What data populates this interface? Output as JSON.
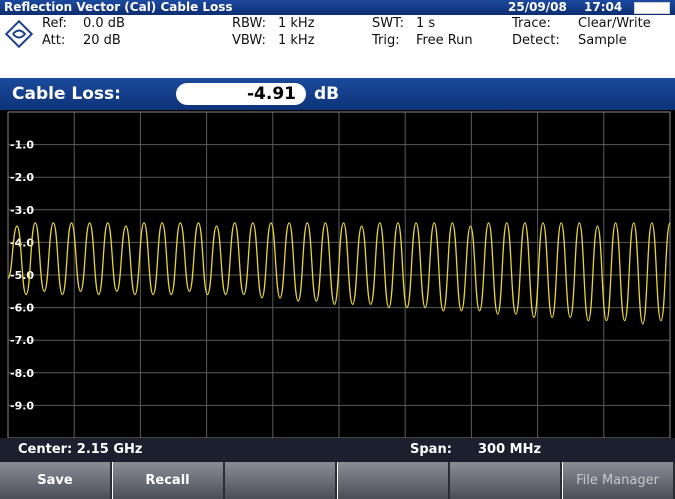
{
  "title_bar": {
    "title": "Reflection Vector (Cal) Cable Loss",
    "date": "25/09/08",
    "time": "17:04"
  },
  "header": {
    "ref": [
      "Ref:",
      "0.0 dB"
    ],
    "att": [
      "Att:",
      "20 dB"
    ],
    "rbw": [
      "RBW:",
      "1 kHz"
    ],
    "vbw": [
      "VBW:",
      "1 kHz"
    ],
    "swt": [
      "SWT:",
      "1 s"
    ],
    "trig": [
      "Trig:",
      "Free Run"
    ],
    "trace": [
      "Trace:",
      "Clear/Write"
    ],
    "detect": [
      "Detect:",
      "Sample"
    ]
  },
  "result": {
    "label": "Cable Loss:",
    "value": -4.91,
    "unit": "dB"
  },
  "chart_data": {
    "type": "line",
    "ylim": [
      -10,
      0
    ],
    "yticks": [
      {
        "value": -1,
        "label": "-1.0"
      },
      {
        "value": -2,
        "label": "-2.0"
      },
      {
        "value": -3,
        "label": "-3.0"
      },
      {
        "value": -4,
        "label": "-4.0"
      },
      {
        "value": -5,
        "label": "-5.0"
      },
      {
        "value": -6,
        "label": "-6.0"
      },
      {
        "value": -7,
        "label": "-7.0"
      },
      {
        "value": -8,
        "label": "-8.0"
      },
      {
        "value": -9,
        "label": "-9.0"
      }
    ],
    "grid": true,
    "series": [
      {
        "color": "#e6d43a",
        "values": [
          -5.1,
          -3.5,
          -5.6,
          -3.4,
          -5.5,
          -3.4,
          -5.6,
          -3.4,
          -5.5,
          -3.4,
          -5.6,
          -3.4,
          -5.5,
          -3.5,
          -5.6,
          -3.4,
          -5.6,
          -3.4,
          -5.6,
          -3.4,
          -5.5,
          -3.4,
          -5.6,
          -3.5,
          -5.6,
          -3.4,
          -5.6,
          -3.4,
          -5.7,
          -3.4,
          -5.7,
          -3.4,
          -5.8,
          -3.4,
          -5.8,
          -3.4,
          -5.9,
          -3.4,
          -5.9,
          -3.5,
          -5.9,
          -3.4,
          -6.0,
          -3.4,
          -6.0,
          -3.4,
          -6.0,
          -3.4,
          -6.1,
          -3.4,
          -6.1,
          -3.5,
          -6.1,
          -3.4,
          -6.2,
          -3.4,
          -6.2,
          -3.4,
          -6.3,
          -3.4,
          -6.3,
          -3.4,
          -6.3,
          -3.4,
          -6.4,
          -3.5,
          -6.4,
          -3.4,
          -6.4,
          -3.4,
          -6.5,
          -3.4,
          -6.4,
          -3.4
        ]
      }
    ]
  },
  "footer": {
    "center": "Center: 2.15 GHz",
    "span_label": "Span:",
    "span": "300 MHz"
  },
  "softkeys": [
    "Save",
    "Recall",
    null,
    null,
    null,
    "File Manager"
  ]
}
